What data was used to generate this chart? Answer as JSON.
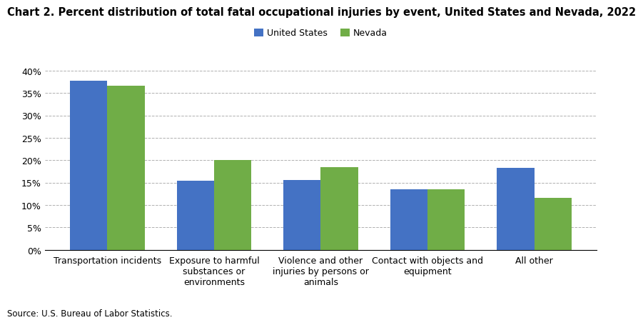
{
  "title": "Chart 2. Percent distribution of total fatal occupational injuries by event, United States and Nevada, 2022",
  "categories": [
    "Transportation incidents",
    "Exposure to harmful\nsubstances or\nenvironments",
    "Violence and other\ninjuries by persons or\nanimals",
    "Contact with objects and\nequipment",
    "All other"
  ],
  "us_values": [
    37.8,
    15.4,
    15.5,
    13.5,
    18.3
  ],
  "nv_values": [
    36.7,
    20.0,
    18.5,
    13.5,
    11.6
  ],
  "us_color": "#4472C4",
  "nv_color": "#70AD47",
  "legend_labels": [
    "United States",
    "Nevada"
  ],
  "yticks": [
    0,
    5,
    10,
    15,
    20,
    25,
    30,
    35,
    40
  ],
  "yticklabels": [
    "0%",
    "5%",
    "10%",
    "15%",
    "20%",
    "25%",
    "30%",
    "35%",
    "40%"
  ],
  "ylim": [
    0,
    42
  ],
  "source": "Source: U.S. Bureau of Labor Statistics.",
  "background_color": "#ffffff",
  "title_fontsize": 10.5,
  "axis_fontsize": 9,
  "legend_fontsize": 9,
  "source_fontsize": 8.5
}
